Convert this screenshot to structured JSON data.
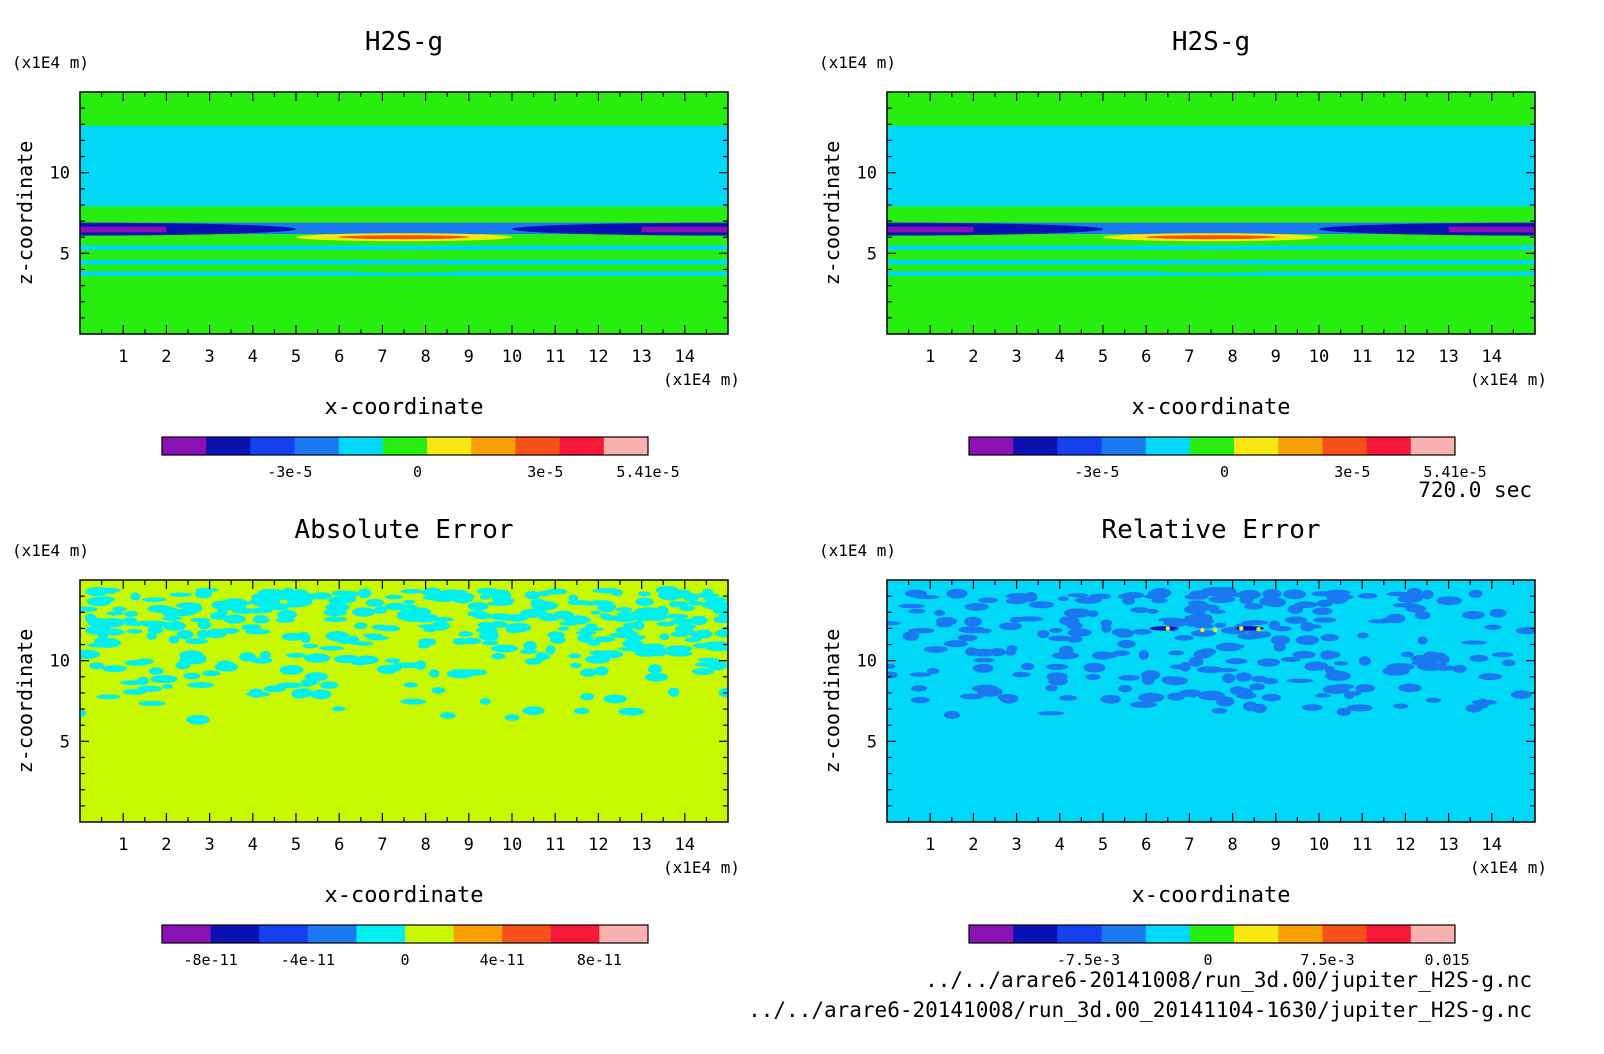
{
  "time_label": "720.0 sec",
  "files": [
    "../../arare6-20141008/run_3d.00/jupiter_H2S-g.nc",
    "../../arare6-20141008/run_3d.00_20141104-1630/jupiter_H2S-g.nc"
  ],
  "chart_data": [
    {
      "type": "heatmap",
      "title": "H2S-g",
      "xlabel": "x-coordinate",
      "ylabel": "z-coordinate",
      "x_unit": "(x1E4 m)",
      "z_unit": "(x1E4 m)",
      "xlim": [
        0,
        15
      ],
      "zlim": [
        0,
        15
      ],
      "xticks": [
        "1",
        "2",
        "3",
        "4",
        "5",
        "6",
        "7",
        "8",
        "9",
        "10",
        "11",
        "12",
        "13",
        "14"
      ],
      "zticks": [
        "5",
        "10"
      ],
      "pattern": "layers",
      "colorbar": {
        "colors": [
          "#8a12b4",
          "#0a12b4",
          "#1440f0",
          "#1a78f0",
          "#00d8f8",
          "#28ee10",
          "#f8e810",
          "#f8a000",
          "#f85018",
          "#f81838",
          "#f8b0b0"
        ],
        "labels": [
          "-3e-5",
          "0",
          "3e-5",
          "5.41e-5"
        ],
        "label_values": [
          -3e-05,
          0,
          3e-05,
          5.41e-05
        ],
        "range": [
          -6e-05,
          5.41e-05
        ]
      }
    },
    {
      "type": "heatmap",
      "title": "H2S-g",
      "xlabel": "x-coordinate",
      "ylabel": "z-coordinate",
      "x_unit": "(x1E4 m)",
      "z_unit": "(x1E4 m)",
      "xlim": [
        0,
        15
      ],
      "zlim": [
        0,
        15
      ],
      "xticks": [
        "1",
        "2",
        "3",
        "4",
        "5",
        "6",
        "7",
        "8",
        "9",
        "10",
        "11",
        "12",
        "13",
        "14"
      ],
      "zticks": [
        "5",
        "10"
      ],
      "pattern": "layers",
      "colorbar": {
        "colors": [
          "#8a12b4",
          "#0a12b4",
          "#1440f0",
          "#1a78f0",
          "#00d8f8",
          "#28ee10",
          "#f8e810",
          "#f8a000",
          "#f85018",
          "#f81838",
          "#f8b0b0"
        ],
        "labels": [
          "-3e-5",
          "0",
          "3e-5",
          "5.41e-5"
        ],
        "label_values": [
          -3e-05,
          0,
          3e-05,
          5.41e-05
        ],
        "range": [
          -6e-05,
          5.41e-05
        ]
      }
    },
    {
      "type": "heatmap",
      "title": "Absolute Error",
      "xlabel": "x-coordinate",
      "ylabel": "z-coordinate",
      "x_unit": "(x1E4 m)",
      "z_unit": "(x1E4 m)",
      "xlim": [
        0,
        15
      ],
      "zlim": [
        0,
        15
      ],
      "xticks": [
        "1",
        "2",
        "3",
        "4",
        "5",
        "6",
        "7",
        "8",
        "9",
        "10",
        "11",
        "12",
        "13",
        "14"
      ],
      "zticks": [
        "5",
        "10"
      ],
      "pattern": "abs_error",
      "colorbar": {
        "colors": [
          "#8a12b4",
          "#0a12b4",
          "#1440f0",
          "#1a78f0",
          "#00f0f0",
          "#c8f800",
          "#f8a000",
          "#f85018",
          "#f81838",
          "#f8b0b0"
        ],
        "labels": [
          "-8e-11",
          "-4e-11",
          "0",
          "4e-11",
          "8e-11"
        ],
        "label_values": [
          -8e-11,
          -4e-11,
          0,
          4e-11,
          8e-11
        ],
        "range": [
          -1e-10,
          1e-10
        ]
      }
    },
    {
      "type": "heatmap",
      "title": "Relative Error",
      "xlabel": "x-coordinate",
      "ylabel": "z-coordinate",
      "x_unit": "(x1E4 m)",
      "z_unit": "(x1E4 m)",
      "xlim": [
        0,
        15
      ],
      "zlim": [
        0,
        15
      ],
      "xticks": [
        "1",
        "2",
        "3",
        "4",
        "5",
        "6",
        "7",
        "8",
        "9",
        "10",
        "11",
        "12",
        "13",
        "14"
      ],
      "zticks": [
        "5",
        "10"
      ],
      "pattern": "rel_error",
      "colorbar": {
        "colors": [
          "#8a12b4",
          "#0a12b4",
          "#1440f0",
          "#1a78f0",
          "#00d8f8",
          "#28ee10",
          "#f8e810",
          "#f8a000",
          "#f85018",
          "#f81838",
          "#f8b0b0"
        ],
        "labels": [
          "-7.5e-3",
          "0",
          "7.5e-3",
          "0.015"
        ],
        "label_values": [
          -0.0075,
          0,
          0.0075,
          0.015
        ],
        "range": [
          -0.015,
          0.0155
        ]
      }
    }
  ]
}
